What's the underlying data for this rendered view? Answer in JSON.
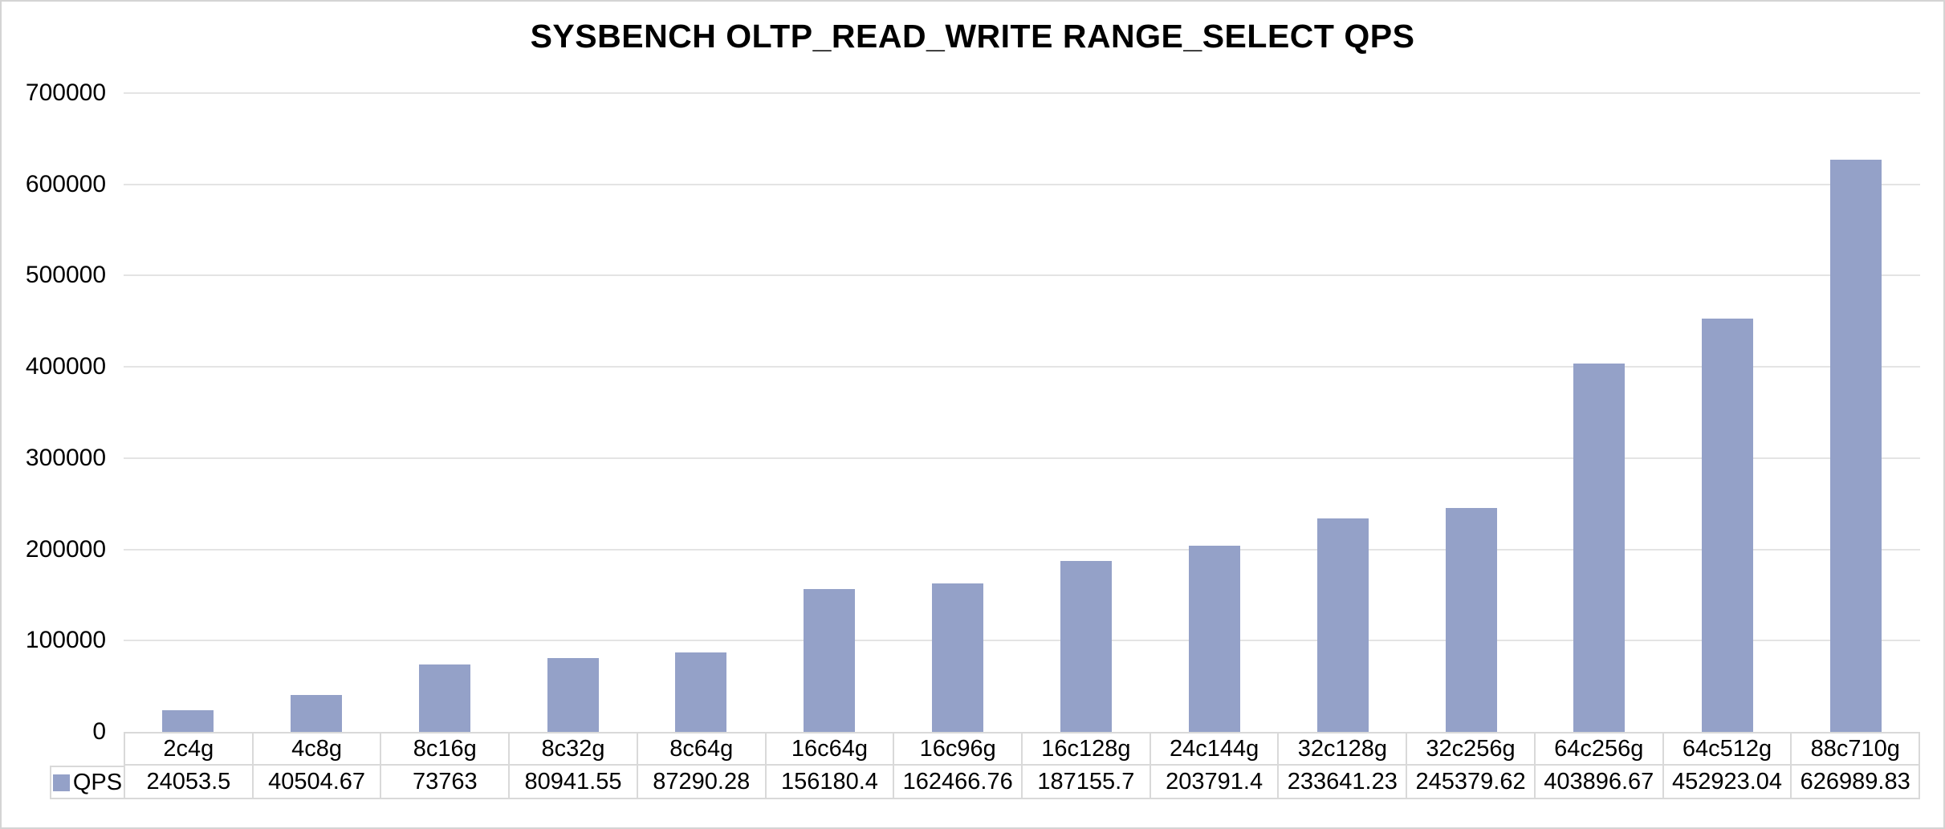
{
  "chart_data": {
    "type": "bar",
    "title": "SYSBENCH OLTP_READ_WRITE RANGE_SELECT QPS",
    "series_name": "QPS",
    "categories": [
      "2c4g",
      "4c8g",
      "8c16g",
      "8c32g",
      "8c64g",
      "16c64g",
      "16c96g",
      "16c128g",
      "24c144g",
      "32c128g",
      "32c256g",
      "64c256g",
      "64c512g",
      "88c710g"
    ],
    "values": [
      24053.5,
      40504.67,
      73763,
      80941.55,
      87290.28,
      156180.4,
      162466.76,
      187155.7,
      203791.4,
      233641.23,
      245379.62,
      403896.67,
      452923.04,
      626989.83
    ],
    "value_labels": [
      "24053.5",
      "40504.67",
      "73763",
      "80941.55",
      "87290.28",
      "156180.4",
      "162466.76",
      "187155.7",
      "203791.4",
      "233641.23",
      "245379.62",
      "403896.67",
      "452923.04",
      "626989.83"
    ],
    "xlabel": "",
    "ylabel": "",
    "ylim": [
      0,
      700000
    ],
    "yticks": [
      0,
      100000,
      200000,
      300000,
      400000,
      500000,
      600000,
      700000
    ],
    "ytick_labels": [
      "0",
      "100000",
      "200000",
      "300000",
      "400000",
      "500000",
      "600000",
      "700000"
    ],
    "grid": "horizontal",
    "legend_position": "bottom-left-table",
    "data_table_shown": true,
    "colors": {
      "bar": "#94A1C8",
      "gridline": "#E4E4E4",
      "table_border": "#D9D9D9",
      "outer_border": "#D4D4D4",
      "text": "#000000"
    }
  }
}
